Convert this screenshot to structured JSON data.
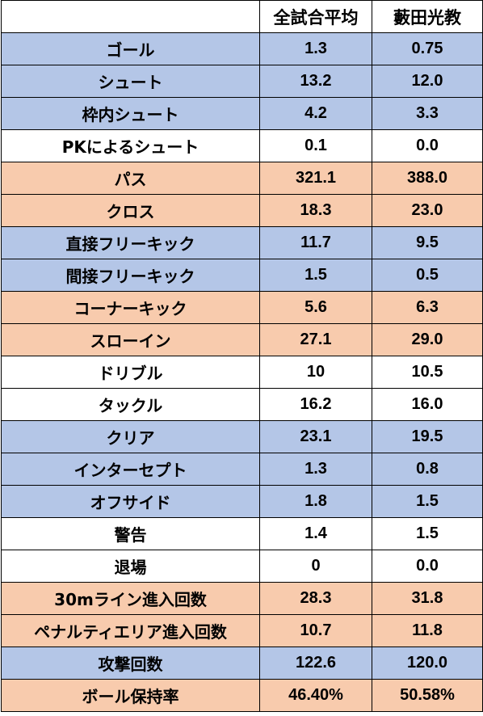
{
  "table": {
    "headers": [
      "",
      "全試合平均",
      "藪田光教"
    ],
    "colors": {
      "blue": "#b4c6e7",
      "orange": "#f8cbad",
      "white": "#ffffff"
    },
    "rows": [
      {
        "label": "ゴール",
        "avg": "1.3",
        "player": "0.75",
        "color": "#b4c6e7"
      },
      {
        "label": "シュート",
        "avg": "13.2",
        "player": "12.0",
        "color": "#b4c6e7"
      },
      {
        "label": "枠内シュート",
        "avg": "4.2",
        "player": "3.3",
        "color": "#b4c6e7"
      },
      {
        "label": "PKによるシュート",
        "avg": "0.1",
        "player": "0.0",
        "color": "#ffffff"
      },
      {
        "label": "パス",
        "avg": "321.1",
        "player": "388.0",
        "color": "#f8cbad"
      },
      {
        "label": "クロス",
        "avg": "18.3",
        "player": "23.0",
        "color": "#f8cbad"
      },
      {
        "label": "直接フリーキック",
        "avg": "11.7",
        "player": "9.5",
        "color": "#b4c6e7"
      },
      {
        "label": "間接フリーキック",
        "avg": "1.5",
        "player": "0.5",
        "color": "#b4c6e7"
      },
      {
        "label": "コーナーキック",
        "avg": "5.6",
        "player": "6.3",
        "color": "#f8cbad"
      },
      {
        "label": "スローイン",
        "avg": "27.1",
        "player": "29.0",
        "color": "#f8cbad"
      },
      {
        "label": "ドリブル",
        "avg": "10",
        "player": "10.5",
        "color": "#ffffff"
      },
      {
        "label": "タックル",
        "avg": "16.2",
        "player": "16.0",
        "color": "#ffffff"
      },
      {
        "label": "クリア",
        "avg": "23.1",
        "player": "19.5",
        "color": "#b4c6e7"
      },
      {
        "label": "インターセプト",
        "avg": "1.3",
        "player": "0.8",
        "color": "#b4c6e7"
      },
      {
        "label": "オフサイド",
        "avg": "1.8",
        "player": "1.5",
        "color": "#b4c6e7"
      },
      {
        "label": "警告",
        "avg": "1.4",
        "player": "1.5",
        "color": "#ffffff"
      },
      {
        "label": "退場",
        "avg": "0",
        "player": "0.0",
        "color": "#ffffff"
      },
      {
        "label": "30mライン進入回数",
        "avg": "28.3",
        "player": "31.8",
        "color": "#f8cbad"
      },
      {
        "label": "ペナルティエリア進入回数",
        "avg": "10.7",
        "player": "11.8",
        "color": "#f8cbad"
      },
      {
        "label": "攻撃回数",
        "avg": "122.6",
        "player": "120.0",
        "color": "#b4c6e7"
      },
      {
        "label": "ボール保持率",
        "avg": "46.40%",
        "player": "50.58%",
        "color": "#f8cbad"
      }
    ]
  }
}
